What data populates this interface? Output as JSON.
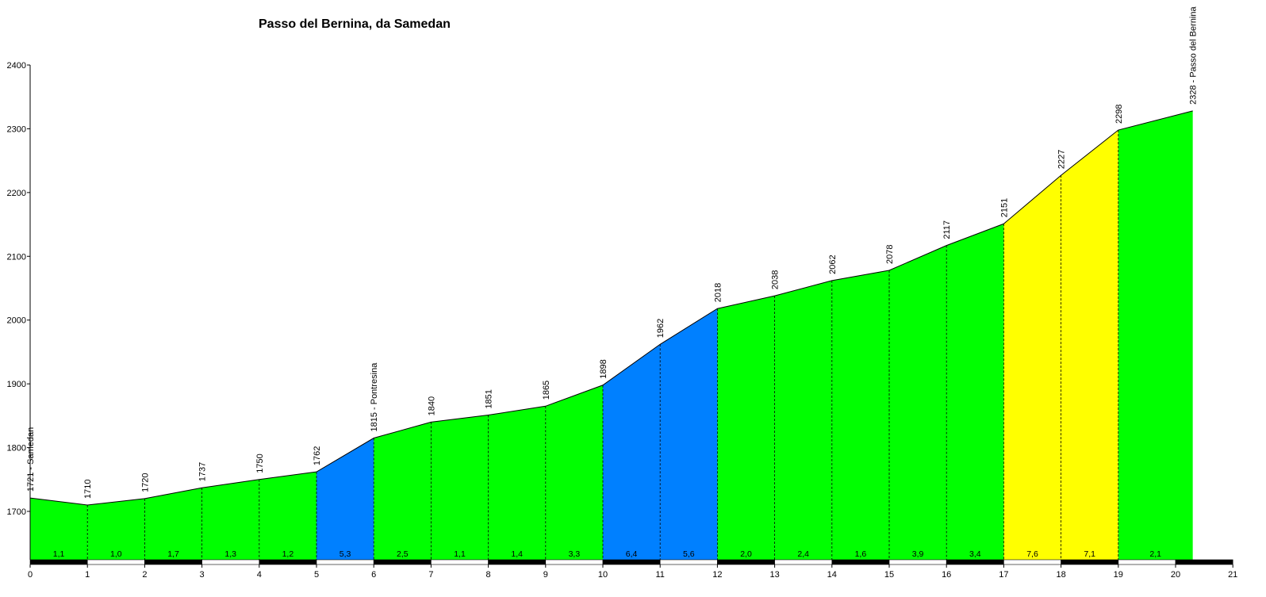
{
  "chart_data": {
    "type": "area",
    "title": "Passo del Bernina, da Samedan",
    "xlabel": "",
    "ylabel": "",
    "xlim": [
      0,
      21
    ],
    "ylim": [
      1620,
      2400
    ],
    "x_ticks": [
      "0",
      "1",
      "2",
      "3",
      "4",
      "5",
      "6",
      "7",
      "8",
      "9",
      "10",
      "11",
      "12",
      "13",
      "14",
      "15",
      "16",
      "17",
      "18",
      "19",
      "20",
      "21"
    ],
    "y_ticks": [
      "1700",
      "1800",
      "1900",
      "2000",
      "2100",
      "2200",
      "2300",
      "2400"
    ],
    "points": [
      {
        "x": 0,
        "y": 1721,
        "label": "1721 - Samedan"
      },
      {
        "x": 1,
        "y": 1710,
        "label": "1710"
      },
      {
        "x": 2,
        "y": 1720,
        "label": "1720"
      },
      {
        "x": 3,
        "y": 1737,
        "label": "1737"
      },
      {
        "x": 4,
        "y": 1750,
        "label": "1750"
      },
      {
        "x": 5,
        "y": 1762,
        "label": "1762"
      },
      {
        "x": 6,
        "y": 1815,
        "label": "1815 - Pontresina"
      },
      {
        "x": 7,
        "y": 1840,
        "label": "1840"
      },
      {
        "x": 8,
        "y": 1851,
        "label": "1851"
      },
      {
        "x": 9,
        "y": 1865,
        "label": "1865"
      },
      {
        "x": 10,
        "y": 1898,
        "label": "1898"
      },
      {
        "x": 11,
        "y": 1962,
        "label": "1962"
      },
      {
        "x": 12,
        "y": 2018,
        "label": "2018"
      },
      {
        "x": 13,
        "y": 2038,
        "label": "2038"
      },
      {
        "x": 14,
        "y": 2062,
        "label": "2062"
      },
      {
        "x": 15,
        "y": 2078,
        "label": "2078"
      },
      {
        "x": 16,
        "y": 2117,
        "label": "2117"
      },
      {
        "x": 17,
        "y": 2151,
        "label": "2151"
      },
      {
        "x": 18,
        "y": 2227,
        "label": "2227"
      },
      {
        "x": 19,
        "y": 2298,
        "label": "2298"
      },
      {
        "x": 20.3,
        "y": 2328,
        "label": "2328 - Passo del Bernina"
      }
    ],
    "segments": [
      {
        "gradient": "1,1",
        "color": "#00ff00"
      },
      {
        "gradient": "1,0",
        "color": "#00ff00"
      },
      {
        "gradient": "1,7",
        "color": "#00ff00"
      },
      {
        "gradient": "1,3",
        "color": "#00ff00"
      },
      {
        "gradient": "1,2",
        "color": "#00ff00"
      },
      {
        "gradient": "5,3",
        "color": "#0080ff"
      },
      {
        "gradient": "2,5",
        "color": "#00ff00"
      },
      {
        "gradient": "1,1",
        "color": "#00ff00"
      },
      {
        "gradient": "1,4",
        "color": "#00ff00"
      },
      {
        "gradient": "3,3",
        "color": "#00ff00"
      },
      {
        "gradient": "6,4",
        "color": "#0080ff"
      },
      {
        "gradient": "5,6",
        "color": "#0080ff"
      },
      {
        "gradient": "2,0",
        "color": "#00ff00"
      },
      {
        "gradient": "2,4",
        "color": "#00ff00"
      },
      {
        "gradient": "1,6",
        "color": "#00ff00"
      },
      {
        "gradient": "3,9",
        "color": "#00ff00"
      },
      {
        "gradient": "3,4",
        "color": "#00ff00"
      },
      {
        "gradient": "7,6",
        "color": "#ffff00"
      },
      {
        "gradient": "7,1",
        "color": "#ffff00"
      },
      {
        "gradient": "2,1",
        "color": "#00ff00"
      }
    ],
    "grid": false
  }
}
